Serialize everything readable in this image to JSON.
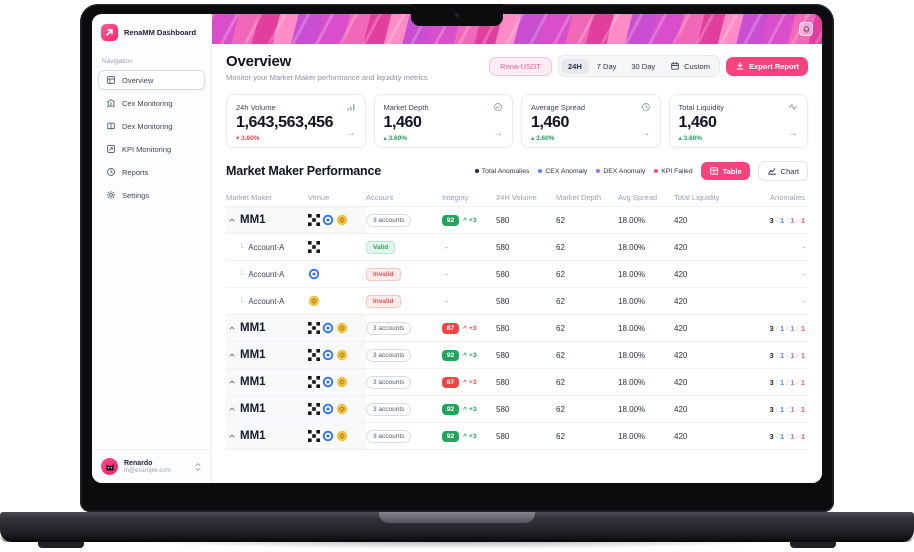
{
  "app": {
    "title": "RenaMM Dashboard"
  },
  "sidebar": {
    "section_label": "Navigation",
    "items": [
      {
        "label": "Overview",
        "icon": "dashboard-icon",
        "active": true
      },
      {
        "label": "Cex Monitoring",
        "icon": "bank-icon",
        "active": false
      },
      {
        "label": "Dex Monitoring",
        "icon": "book-icon",
        "active": false
      },
      {
        "label": "KPI Monitoring",
        "icon": "kpi-icon",
        "active": false
      },
      {
        "label": "Reports",
        "icon": "clock-icon",
        "active": false
      },
      {
        "label": "Settings",
        "icon": "gear-icon",
        "active": false
      }
    ],
    "user": {
      "name": "Renardo",
      "email": "m@example.com"
    }
  },
  "header": {
    "title": "Overview",
    "subtitle": "Monitor your Market Maker performance and liquidity metrics",
    "pair_button": "Rena-USDT",
    "ranges": [
      {
        "label": "24H",
        "active": true
      },
      {
        "label": "7 Day",
        "active": false
      },
      {
        "label": "30 Day",
        "active": false
      }
    ],
    "custom": {
      "label": "Custom",
      "icon": "calendar-icon"
    },
    "export_label": "Export Report",
    "accent_color": "#f5437e"
  },
  "cards": [
    {
      "title": "24h Volume",
      "icon": "bar-chart-icon",
      "value": "1,643,563,456",
      "change": "3.60%",
      "direction": "down"
    },
    {
      "title": "Market Depth",
      "icon": "check-circle-icon",
      "value": "1,460",
      "change": "3.60%",
      "direction": "up"
    },
    {
      "title": "Average Spread",
      "icon": "clock-icon",
      "value": "1,460",
      "change": "3.60%",
      "direction": "up"
    },
    {
      "title": "Total Liquidity",
      "icon": "activity-icon",
      "value": "1,460",
      "change": "3.60%",
      "direction": "up"
    }
  ],
  "performance": {
    "title": "Market Maker Performance",
    "legend": [
      {
        "label": "Total Anomalies",
        "color": "#232a39"
      },
      {
        "label": "CEX Anomaly",
        "color": "#4f8bf7"
      },
      {
        "label": "DEX Anomaly",
        "color": "#b36bf0"
      },
      {
        "label": "KPI Failed",
        "color": "#f4547c"
      }
    ],
    "anomaly_colors": [
      "#232a39",
      "#4f8bf7",
      "#b36bf0",
      "#f4547c"
    ],
    "view_toggle": {
      "table": "Table",
      "chart": "Chart"
    },
    "columns": [
      "Market Maker",
      "Venue",
      "Account",
      "Integrity",
      "24H Volume",
      "Market Depth",
      "Avg Spread",
      "Total Liquidity",
      "Anomalies"
    ],
    "rows": [
      {
        "name": "MM1",
        "venues": [
          "okx-icon",
          "target-icon",
          "bnb-icon"
        ],
        "account": "3 accounts",
        "integrity": "92",
        "integrity_state": "good",
        "delta": "+3",
        "volume": "580",
        "depth": "62",
        "spread": "18.00%",
        "liquidity": "420",
        "anomalies": [
          "3",
          "1",
          "1",
          "1"
        ],
        "children": [
          {
            "name": "Account-A",
            "venue": "okx-icon",
            "status": "Valid",
            "integrity": "-",
            "volume": "580",
            "depth": "62",
            "spread": "18.00%",
            "liquidity": "420",
            "anomalies": "-"
          },
          {
            "name": "Account-A",
            "venue": "target-icon",
            "status": "Invalid",
            "integrity": "-",
            "volume": "580",
            "depth": "62",
            "spread": "18.00%",
            "liquidity": "420",
            "anomalies": "-"
          },
          {
            "name": "Account-A",
            "venue": "bnb-icon",
            "status": "Invalid",
            "integrity": "-",
            "volume": "580",
            "depth": "62",
            "spread": "18.00%",
            "liquidity": "420",
            "anomalies": "-"
          }
        ]
      },
      {
        "name": "MM1",
        "venues": [
          "okx-icon",
          "target-icon",
          "bnb-icon"
        ],
        "account": "3 accounts",
        "integrity": "87",
        "integrity_state": "bad",
        "delta": "+3",
        "volume": "580",
        "depth": "62",
        "spread": "18.00%",
        "liquidity": "420",
        "anomalies": [
          "3",
          "1",
          "1",
          "1"
        ],
        "children": []
      },
      {
        "name": "MM1",
        "venues": [
          "okx-icon",
          "target-icon",
          "bnb-icon"
        ],
        "account": "3 accounts",
        "integrity": "92",
        "integrity_state": "good",
        "delta": "+3",
        "volume": "580",
        "depth": "62",
        "spread": "18.00%",
        "liquidity": "420",
        "anomalies": [
          "3",
          "1",
          "1",
          "1"
        ],
        "children": []
      },
      {
        "name": "MM1",
        "venues": [
          "okx-icon",
          "target-icon",
          "bnb-icon"
        ],
        "account": "3 accounts",
        "integrity": "87",
        "integrity_state": "bad",
        "delta": "+3",
        "volume": "580",
        "depth": "62",
        "spread": "18.00%",
        "liquidity": "420",
        "anomalies": [
          "3",
          "1",
          "1",
          "1"
        ],
        "children": []
      },
      {
        "name": "MM1",
        "venues": [
          "okx-icon",
          "target-icon",
          "bnb-icon"
        ],
        "account": "3 accounts",
        "integrity": "92",
        "integrity_state": "good",
        "delta": "+3",
        "volume": "580",
        "depth": "62",
        "spread": "18.00%",
        "liquidity": "420",
        "anomalies": [
          "3",
          "1",
          "1",
          "1"
        ],
        "children": []
      },
      {
        "name": "MM1",
        "venues": [
          "okx-icon",
          "target-icon",
          "bnb-icon"
        ],
        "account": "3 accounts",
        "integrity": "92",
        "integrity_state": "good",
        "delta": "+3",
        "volume": "580",
        "depth": "62",
        "spread": "18.00%",
        "liquidity": "420",
        "anomalies": [
          "3",
          "1",
          "1",
          "1"
        ],
        "children": []
      }
    ]
  }
}
